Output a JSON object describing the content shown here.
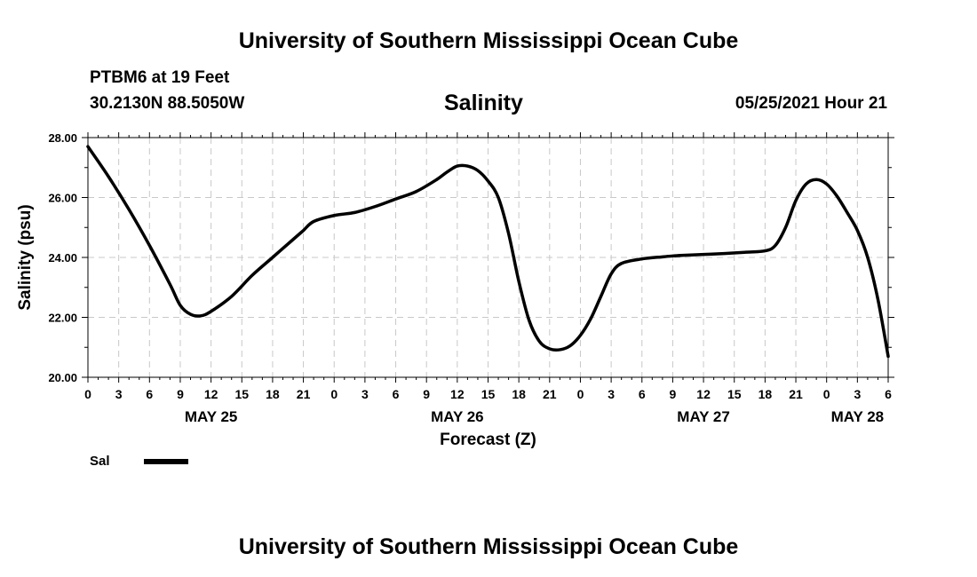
{
  "header": {
    "title": "University of Southern Mississippi Ocean Cube",
    "station": "PTBM6 at 19 Feet",
    "coords": "30.2130N  88.5050W",
    "chart_name": "Salinity",
    "timestamp": "05/25/2021 Hour 21"
  },
  "footer": {
    "title": "University of Southern Mississippi Ocean Cube"
  },
  "legend": {
    "label": "Sal",
    "color": "#000000"
  },
  "chart_data": {
    "type": "line",
    "title": "Salinity",
    "xlabel": "Forecast (Z)",
    "ylabel": "Salinity (psu)",
    "xlim": [
      0,
      78
    ],
    "ylim": [
      20,
      28
    ],
    "yticks": [
      20,
      22,
      24,
      26,
      28
    ],
    "ytick_labels": [
      "20.00",
      "22.00",
      "24.00",
      "26.00",
      "28.00"
    ],
    "xticks": [
      0,
      3,
      6,
      9,
      12,
      15,
      18,
      21,
      24,
      27,
      30,
      33,
      36,
      39,
      42,
      45,
      48,
      51,
      54,
      57,
      60,
      63,
      66,
      69,
      72,
      75,
      78
    ],
    "xtick_labels": [
      "0",
      "3",
      "6",
      "9",
      "12",
      "15",
      "18",
      "21",
      "0",
      "3",
      "6",
      "9",
      "12",
      "15",
      "18",
      "21",
      "0",
      "3",
      "6",
      "9",
      "12",
      "15",
      "18",
      "21",
      "0",
      "3",
      "6"
    ],
    "day_labels": [
      {
        "x": 12,
        "label": "MAY 25"
      },
      {
        "x": 36,
        "label": "MAY 26"
      },
      {
        "x": 60,
        "label": "MAY 27"
      },
      {
        "x": 75,
        "label": "MAY 28"
      }
    ],
    "grid": true,
    "series": [
      {
        "name": "Sal",
        "color": "#000000",
        "x": [
          0,
          2,
          4,
          6,
          8,
          9,
          10,
          11,
          12,
          14,
          16,
          18,
          20,
          21,
          22,
          24,
          26,
          28,
          30,
          32,
          34,
          35,
          36,
          37,
          38,
          39,
          40,
          41,
          42,
          43,
          44,
          45,
          46,
          47,
          48,
          49,
          50,
          51,
          52,
          54,
          56,
          57,
          58,
          60,
          62,
          64,
          66,
          67,
          68,
          69,
          70,
          71,
          72,
          73,
          74,
          75,
          76,
          77,
          78
        ],
        "values": [
          27.7,
          26.7,
          25.6,
          24.4,
          23.1,
          22.4,
          22.1,
          22.05,
          22.2,
          22.7,
          23.4,
          24.0,
          24.6,
          24.9,
          25.2,
          25.4,
          25.5,
          25.7,
          25.95,
          26.2,
          26.6,
          26.85,
          27.05,
          27.05,
          26.9,
          26.55,
          26.0,
          24.8,
          23.2,
          21.9,
          21.2,
          20.95,
          20.92,
          21.05,
          21.4,
          21.95,
          22.7,
          23.45,
          23.8,
          23.95,
          24.02,
          24.05,
          24.07,
          24.1,
          24.13,
          24.17,
          24.22,
          24.4,
          25.0,
          25.9,
          26.45,
          26.6,
          26.45,
          26.05,
          25.5,
          24.9,
          24.0,
          22.6,
          20.7
        ]
      }
    ]
  }
}
